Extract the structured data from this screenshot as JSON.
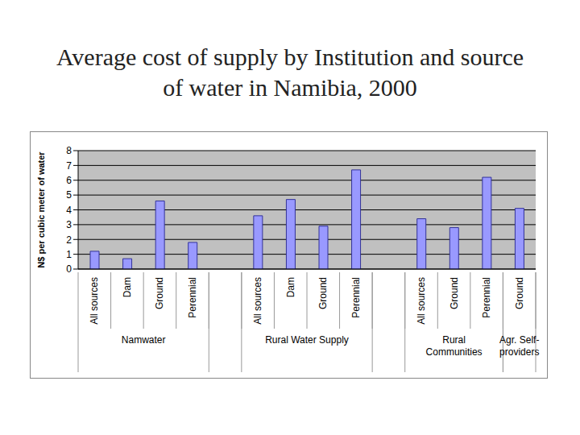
{
  "chart_data": {
    "type": "bar",
    "title": "Average cost of supply by Institution and source of water in Namibia, 2000",
    "y_label": "N$ per cubic meter of water",
    "categories": [
      "All sources",
      "Dam",
      "Ground",
      "Perennial",
      null,
      "All sources",
      "Dam",
      "Ground",
      "Perennial",
      null,
      "All sources",
      "Ground",
      "Perennial",
      "Ground"
    ],
    "groups": [
      "Namwater",
      "Namwater",
      "Namwater",
      "Namwater",
      null,
      "Rural Water Supply",
      "Rural Water Supply",
      "Rural Water Supply",
      "Rural Water Supply",
      null,
      "Rural Communities",
      "Rural Communities",
      "Rural Communities",
      "Agr. Self-providers"
    ],
    "values": [
      1.2,
      0.7,
      4.6,
      1.8,
      null,
      3.6,
      4.7,
      2.9,
      6.7,
      null,
      3.4,
      2.8,
      6.2,
      4.1
    ],
    "color": "#9999ff",
    "ylim": [
      0,
      8
    ],
    "yticks": [
      0,
      1,
      2,
      3,
      4,
      5,
      6,
      7,
      8
    ],
    "grid": true
  }
}
